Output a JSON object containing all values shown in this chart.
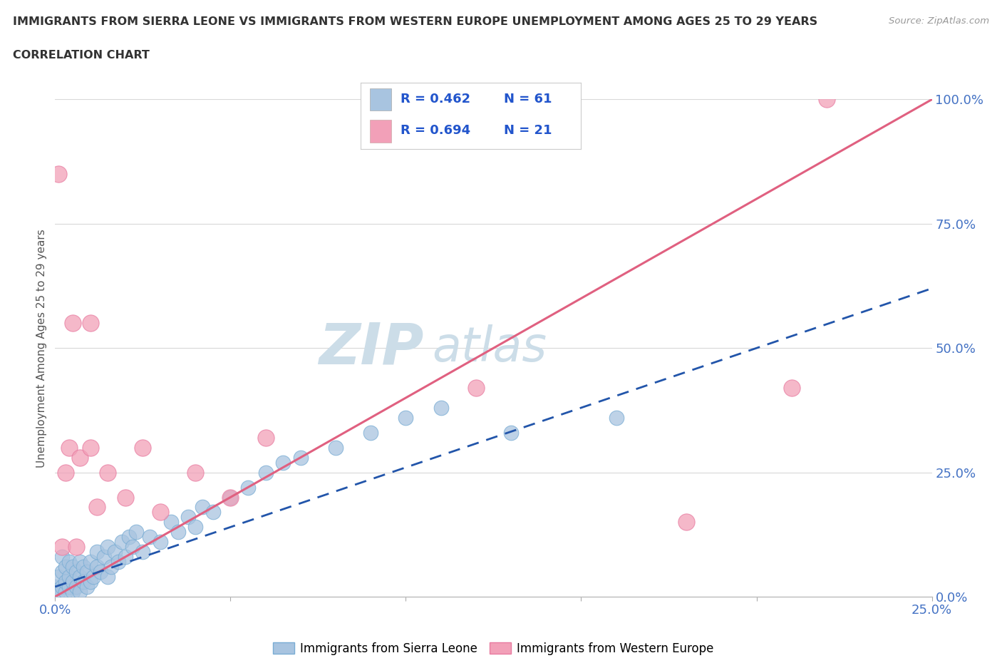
{
  "title_line1": "IMMIGRANTS FROM SIERRA LEONE VS IMMIGRANTS FROM WESTERN EUROPE UNEMPLOYMENT AMONG AGES 25 TO 29 YEARS",
  "title_line2": "CORRELATION CHART",
  "source_text": "Source: ZipAtlas.com",
  "ylabel": "Unemployment Among Ages 25 to 29 years",
  "xlim": [
    0.0,
    0.25
  ],
  "ylim": [
    0.0,
    1.0
  ],
  "xticks": [
    0.0,
    0.05,
    0.1,
    0.15,
    0.2,
    0.25
  ],
  "yticks_right": [
    0.0,
    0.25,
    0.5,
    0.75,
    1.0
  ],
  "ytick_labels_right": [
    "0.0%",
    "25.0%",
    "50.0%",
    "75.0%",
    "100.0%"
  ],
  "xtick_labels": [
    "0.0%",
    "",
    "",
    "",
    "",
    "25.0%"
  ],
  "legend_R_blue": "0.462",
  "legend_N_blue": "61",
  "legend_R_pink": "0.694",
  "legend_N_pink": "21",
  "legend_label_blue": "Immigrants from Sierra Leone",
  "legend_label_pink": "Immigrants from Western Europe",
  "blue_color": "#a8c4e0",
  "pink_color": "#f2a0b8",
  "blue_edge_color": "#7aadd4",
  "pink_edge_color": "#e87ba0",
  "blue_line_color": "#2255aa",
  "pink_line_color": "#e06080",
  "watermark_color": "#ccdde8",
  "background_color": "#ffffff",
  "grid_color": "#d8d8d8",
  "blue_x": [
    0.0,
    0.001,
    0.001,
    0.002,
    0.002,
    0.002,
    0.003,
    0.003,
    0.003,
    0.004,
    0.004,
    0.004,
    0.005,
    0.005,
    0.005,
    0.006,
    0.006,
    0.007,
    0.007,
    0.007,
    0.008,
    0.008,
    0.009,
    0.009,
    0.01,
    0.01,
    0.011,
    0.012,
    0.012,
    0.013,
    0.014,
    0.015,
    0.015,
    0.016,
    0.017,
    0.018,
    0.019,
    0.02,
    0.021,
    0.022,
    0.023,
    0.025,
    0.027,
    0.03,
    0.033,
    0.035,
    0.038,
    0.04,
    0.042,
    0.045,
    0.05,
    0.055,
    0.06,
    0.065,
    0.07,
    0.08,
    0.09,
    0.1,
    0.11,
    0.13,
    0.16
  ],
  "blue_y": [
    0.02,
    0.01,
    0.04,
    0.02,
    0.05,
    0.08,
    0.01,
    0.03,
    0.06,
    0.02,
    0.04,
    0.07,
    0.01,
    0.03,
    0.06,
    0.02,
    0.05,
    0.01,
    0.04,
    0.07,
    0.03,
    0.06,
    0.02,
    0.05,
    0.03,
    0.07,
    0.04,
    0.06,
    0.09,
    0.05,
    0.08,
    0.04,
    0.1,
    0.06,
    0.09,
    0.07,
    0.11,
    0.08,
    0.12,
    0.1,
    0.13,
    0.09,
    0.12,
    0.11,
    0.15,
    0.13,
    0.16,
    0.14,
    0.18,
    0.17,
    0.2,
    0.22,
    0.25,
    0.27,
    0.28,
    0.3,
    0.33,
    0.36,
    0.38,
    0.33,
    0.36
  ],
  "pink_x": [
    0.001,
    0.002,
    0.003,
    0.004,
    0.005,
    0.006,
    0.007,
    0.01,
    0.01,
    0.012,
    0.015,
    0.02,
    0.025,
    0.03,
    0.04,
    0.05,
    0.06,
    0.12,
    0.18,
    0.21,
    0.22
  ],
  "pink_y": [
    0.85,
    0.1,
    0.25,
    0.3,
    0.55,
    0.1,
    0.28,
    0.3,
    0.55,
    0.18,
    0.25,
    0.2,
    0.3,
    0.17,
    0.25,
    0.2,
    0.32,
    0.42,
    0.15,
    0.42,
    1.0
  ],
  "pink_line_x0": 0.0,
  "pink_line_y0": 0.0,
  "pink_line_x1": 0.25,
  "pink_line_y1": 1.0,
  "blue_line_x0": 0.0,
  "blue_line_y0": 0.02,
  "blue_line_x1": 0.25,
  "blue_line_y1": 0.62
}
